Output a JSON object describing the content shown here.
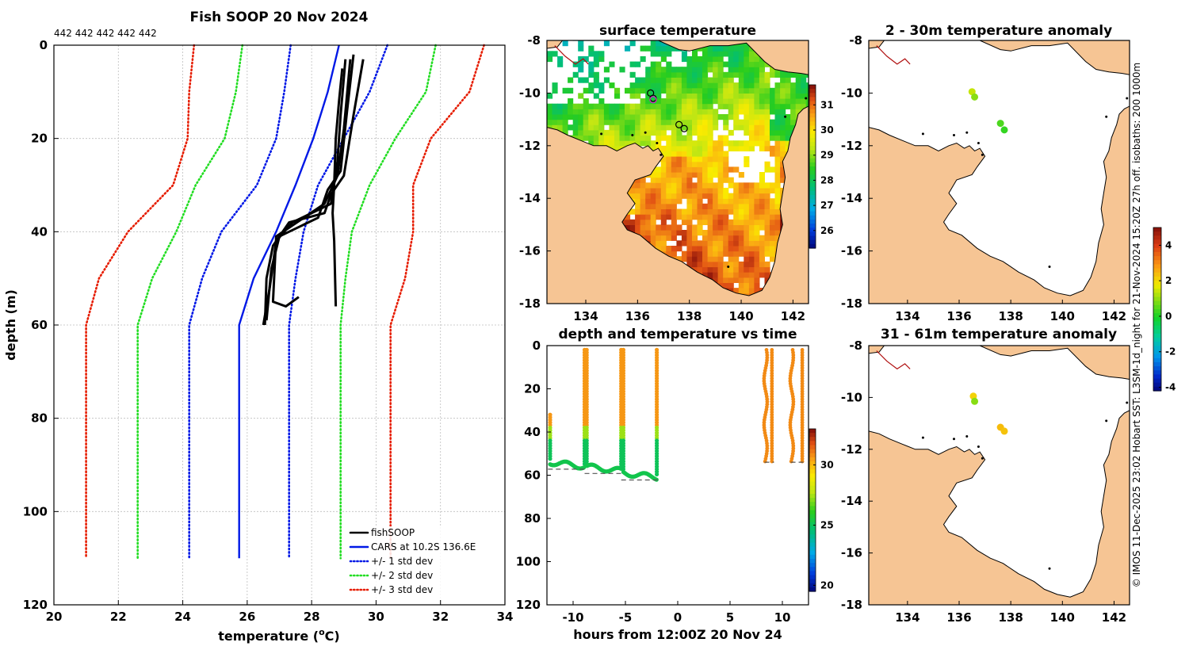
{
  "colors": {
    "land": "#f6c594",
    "fish": "#000000",
    "cars": "#0018e6",
    "std1": "#0018e6",
    "std2": "#22dd22",
    "std3": "#e61c00",
    "coast_dark": "#b01010"
  },
  "credit": "© IMOS 11-Dec-2025 23:02 Hobart SST: L3SM-1d_night for 21-Nov-2024 15:20Z 27h off. isobaths: 200  1000m",
  "chart_data": [
    {
      "id": "profile",
      "type": "line",
      "title": "Fish SOOP 20 Nov 2024",
      "subtitle": "442 442 442 442 442",
      "xlabel": "temperature (°C)",
      "xlabel_main": "temperature (",
      "xlabel_sup": "o",
      "xlabel_end": "C)",
      "ylabel": "depth (m)",
      "xlim": [
        20,
        34
      ],
      "ylim": [
        120,
        0
      ],
      "xticks": [
        20,
        22,
        24,
        26,
        28,
        30,
        32,
        34
      ],
      "yticks": [
        0,
        20,
        40,
        60,
        80,
        100,
        120
      ],
      "grid": true,
      "legend": [
        "fishSOOP",
        "CARS at 10.2S 136.6E",
        "+/- 1 std dev",
        "+/- 2 std dev",
        "+/- 3 std dev"
      ],
      "legend_position": "bottom-right",
      "series": [
        {
          "name": "CARS at 10.2S 136.6E",
          "style": "solid",
          "color_key": "cars",
          "points": [
            [
              28.85,
              0
            ],
            [
              28.5,
              10
            ],
            [
              28.05,
              20
            ],
            [
              27.5,
              30
            ],
            [
              26.9,
              40
            ],
            [
              26.2,
              50
            ],
            [
              25.75,
              60
            ],
            [
              25.75,
              110
            ]
          ]
        },
        {
          "name": "+1 std dev",
          "style": "dot",
          "color_key": "std1",
          "points": [
            [
              30.35,
              0
            ],
            [
              29.8,
              10
            ],
            [
              29.0,
              20
            ],
            [
              28.2,
              30
            ],
            [
              27.75,
              40
            ],
            [
              27.5,
              50
            ],
            [
              27.3,
              60
            ],
            [
              27.3,
              110
            ]
          ]
        },
        {
          "name": "-1 std dev",
          "style": "dot",
          "color_key": "std1",
          "points": [
            [
              27.35,
              0
            ],
            [
              27.15,
              10
            ],
            [
              26.9,
              20
            ],
            [
              26.3,
              30
            ],
            [
              25.2,
              40
            ],
            [
              24.6,
              50
            ],
            [
              24.2,
              60
            ],
            [
              24.2,
              110
            ]
          ]
        },
        {
          "name": "+2 std dev",
          "style": "dot",
          "color_key": "std2",
          "points": [
            [
              31.85,
              0
            ],
            [
              31.55,
              10
            ],
            [
              30.6,
              20
            ],
            [
              29.8,
              30
            ],
            [
              29.25,
              40
            ],
            [
              29.05,
              50
            ],
            [
              28.9,
              60
            ],
            [
              28.9,
              110
            ]
          ]
        },
        {
          "name": "-2 std dev",
          "style": "dot",
          "color_key": "std2",
          "points": [
            [
              25.85,
              0
            ],
            [
              25.65,
              10
            ],
            [
              25.3,
              20
            ],
            [
              24.4,
              30
            ],
            [
              23.8,
              40
            ],
            [
              23.05,
              50
            ],
            [
              22.6,
              60
            ],
            [
              22.6,
              110
            ]
          ]
        },
        {
          "name": "+3 std dev",
          "style": "dot",
          "color_key": "std3",
          "points": [
            [
              33.35,
              0
            ],
            [
              32.9,
              10
            ],
            [
              31.7,
              20
            ],
            [
              31.15,
              30
            ],
            [
              31.15,
              40
            ],
            [
              30.9,
              50
            ],
            [
              30.45,
              60
            ],
            [
              30.45,
              110
            ]
          ]
        },
        {
          "name": "-3 std dev",
          "style": "dot",
          "color_key": "std3",
          "points": [
            [
              24.35,
              0
            ],
            [
              24.2,
              10
            ],
            [
              24.15,
              20
            ],
            [
              23.7,
              30
            ],
            [
              22.3,
              40
            ],
            [
              21.4,
              50
            ],
            [
              21.0,
              60
            ],
            [
              21.0,
              110
            ]
          ]
        },
        {
          "name": "fishSOOP profile 1",
          "style": "solid",
          "color_key": "fish",
          "points": [
            [
              29.6,
              3
            ],
            [
              29.3,
              15
            ],
            [
              29.0,
              28
            ],
            [
              28.6,
              32
            ],
            [
              28.4,
              36
            ],
            [
              27.3,
              38
            ],
            [
              26.8,
              43
            ],
            [
              26.6,
              50
            ],
            [
              26.55,
              60
            ]
          ]
        },
        {
          "name": "fishSOOP profile 2",
          "style": "solid",
          "color_key": "fish",
          "points": [
            [
              29.3,
              2
            ],
            [
              29.1,
              14
            ],
            [
              28.9,
              27
            ],
            [
              28.5,
              31
            ],
            [
              28.2,
              37
            ],
            [
              27.0,
              41
            ],
            [
              26.75,
              48
            ],
            [
              26.6,
              59
            ]
          ]
        },
        {
          "name": "fishSOOP profile 3",
          "style": "solid",
          "color_key": "fish",
          "points": [
            [
              29.05,
              3
            ],
            [
              28.9,
              15
            ],
            [
              28.8,
              25
            ],
            [
              28.6,
              34
            ],
            [
              27.4,
              38
            ],
            [
              26.9,
              42
            ],
            [
              26.7,
              52
            ],
            [
              26.5,
              60
            ]
          ]
        },
        {
          "name": "fishSOOP profile 4",
          "style": "solid",
          "color_key": "fish",
          "points": [
            [
              28.95,
              5
            ],
            [
              28.85,
              12
            ],
            [
              28.75,
              20
            ],
            [
              28.7,
              30
            ],
            [
              28.65,
              36
            ],
            [
              28.7,
              42
            ],
            [
              28.75,
              56
            ]
          ]
        },
        {
          "name": "fishSOOP profile 5",
          "style": "solid",
          "color_key": "fish",
          "points": [
            [
              29.2,
              3
            ],
            [
              29.0,
              18
            ],
            [
              28.8,
              28
            ],
            [
              28.4,
              34
            ],
            [
              26.9,
              41
            ],
            [
              26.8,
              55
            ],
            [
              27.2,
              56
            ],
            [
              27.6,
              54
            ]
          ]
        }
      ]
    },
    {
      "id": "sst_map",
      "type": "heatmap",
      "title": "surface temperature",
      "xlim": [
        132.5,
        142.6
      ],
      "ylim": [
        -18,
        -8
      ],
      "xticks": [
        134,
        136,
        138,
        140,
        142
      ],
      "yticks": [
        -8,
        -10,
        -12,
        -14,
        -16,
        -18
      ],
      "colorbar": {
        "range": [
          25.3,
          31.8
        ],
        "ticks": [
          26,
          27,
          28,
          29,
          30,
          31
        ]
      },
      "stations": [
        [
          136.5,
          -10.0
        ],
        [
          136.6,
          -10.2
        ],
        [
          137.6,
          -11.2
        ],
        [
          137.8,
          -11.35
        ],
        [
          136.6,
          -10.25
        ]
      ]
    },
    {
      "id": "depth_time",
      "type": "scatter",
      "title": "depth and temperature vs time",
      "xlabel": "hours from 12:00Z 20 Nov 24",
      "xlim": [
        -12.5,
        12.5
      ],
      "ylim": [
        120,
        0
      ],
      "xticks": [
        -10,
        -5,
        0,
        5,
        10
      ],
      "yticks": [
        0,
        20,
        40,
        60,
        80,
        100,
        120
      ],
      "colorbar": {
        "range": [
          19.5,
          33
        ],
        "ticks": [
          20,
          25,
          30
        ]
      },
      "tows": [
        {
          "t0": -12.2,
          "t1": -8.9,
          "bottom": 56,
          "start_depth": 32
        },
        {
          "t0": -8.7,
          "t1": -5.4,
          "bottom": 58,
          "start_depth": 2
        },
        {
          "t0": -5.2,
          "t1": -2.0,
          "bottom": 61,
          "start_depth": 2
        },
        {
          "t0": 8.4,
          "t1": 9.0,
          "bottom": 54,
          "start_depth": 2
        },
        {
          "t0": 10.9,
          "t1": 11.9,
          "bottom": 54,
          "start_depth": 2
        }
      ]
    },
    {
      "id": "anom_shallow",
      "type": "scatter",
      "title": "2 - 30m temperature anomaly",
      "xlim": [
        132.5,
        142.6
      ],
      "ylim": [
        -18,
        -8
      ],
      "xticks": [
        134,
        136,
        138,
        140,
        142
      ],
      "yticks": [
        -8,
        -10,
        -12,
        -14,
        -16,
        -18
      ],
      "points": [
        [
          136.5,
          -9.95,
          1.5
        ],
        [
          136.6,
          -10.15,
          1.0
        ],
        [
          137.6,
          -11.15,
          0.5
        ],
        [
          137.75,
          -11.4,
          0.3
        ]
      ]
    },
    {
      "id": "anom_deep",
      "type": "scatter",
      "title": "31 - 61m temperature anomaly",
      "xlim": [
        132.5,
        142.6
      ],
      "ylim": [
        -18,
        -8
      ],
      "xticks": [
        134,
        136,
        138,
        140,
        142
      ],
      "yticks": [
        -8,
        -10,
        -12,
        -14,
        -16,
        -18
      ],
      "points": [
        [
          136.55,
          -9.95,
          2.2
        ],
        [
          136.6,
          -10.15,
          1.0
        ],
        [
          137.6,
          -11.15,
          2.5
        ],
        [
          137.75,
          -11.3,
          2.4
        ]
      ]
    },
    {
      "id": "anom_colorbar",
      "type": "heatmap",
      "range": [
        -4.2,
        5
      ],
      "ticks": [
        -4,
        -2,
        0,
        2,
        4
      ]
    }
  ]
}
